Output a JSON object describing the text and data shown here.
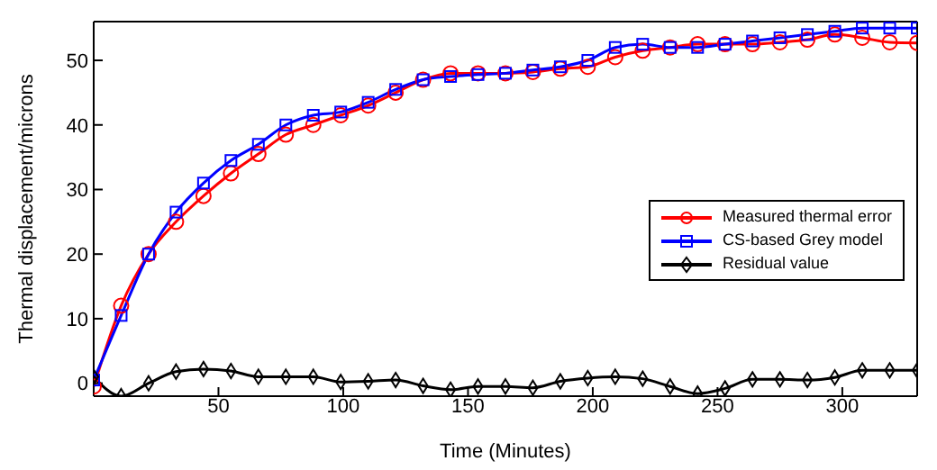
{
  "chart_data": {
    "type": "line",
    "xlabel": "Time (Minutes)",
    "ylabel": "Thermal displacement/microns",
    "x": [
      0,
      11,
      22,
      33,
      44,
      55,
      66,
      77,
      88,
      99,
      110,
      121,
      132,
      143,
      154,
      165,
      176,
      187,
      198,
      209,
      220,
      231,
      242,
      253,
      264,
      275,
      286,
      297,
      308,
      319,
      330
    ],
    "series": [
      {
        "name": "Measured thermal error",
        "color": "#ff0000",
        "marker": "circle",
        "values": [
          -0.5,
          12,
          20,
          25,
          29,
          32.5,
          35.5,
          38.5,
          40,
          41.5,
          43,
          45,
          47,
          48,
          48,
          48,
          48.2,
          48.7,
          49,
          50.5,
          51.5,
          52,
          52.5,
          52.5,
          52.5,
          52.8,
          53.2,
          54,
          53.5,
          52.8,
          52.7
        ]
      },
      {
        "name": "CS-based Grey model",
        "color": "#0000ff",
        "marker": "square",
        "values": [
          0.5,
          10.5,
          20,
          26.5,
          31,
          34.5,
          37,
          40,
          41.5,
          42,
          43.5,
          45.5,
          47,
          47.5,
          47.8,
          48,
          48.5,
          49,
          50,
          52,
          52.5,
          52,
          52,
          52.5,
          53,
          53.5,
          54,
          54.5,
          55,
          55,
          55
        ]
      },
      {
        "name": "Residual value",
        "color": "#000000",
        "marker": "diamond",
        "values": [
          1,
          -2,
          0,
          1.8,
          2.2,
          1.9,
          1,
          1,
          1,
          0.2,
          0.3,
          0.5,
          -0.4,
          -1,
          -0.5,
          -0.5,
          -0.7,
          0.3,
          0.8,
          1,
          0.7,
          -0.5,
          -1.6,
          -0.8,
          0.6,
          0.6,
          0.5,
          0.9,
          2,
          2,
          2
        ]
      }
    ],
    "xlim": [
      0,
      330
    ],
    "xticks": [
      50,
      100,
      150,
      200,
      250,
      300
    ],
    "ylim": [
      -2,
      56
    ],
    "yticks": [
      0,
      10,
      20,
      30,
      40,
      50
    ],
    "grid": false,
    "legend": "right",
    "line_style": "solid"
  }
}
